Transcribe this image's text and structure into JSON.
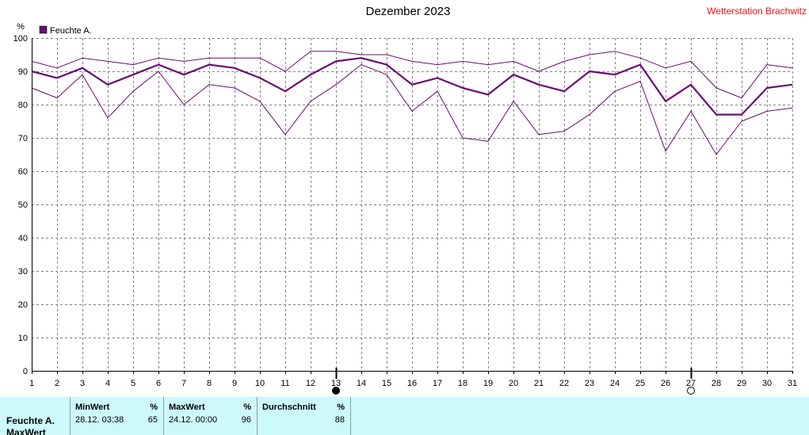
{
  "header": {
    "title": "Dezember 2023",
    "station": "Wetterstation Brachwitz"
  },
  "colors": {
    "series": "#6a0d72",
    "grid": "#808080",
    "panel_bg": "#ccfafa",
    "station_text": "#e8141a"
  },
  "chart_data": {
    "type": "line",
    "title": "Dezember 2023",
    "ylabel": "%",
    "xlabel": "",
    "ylim": [
      0,
      100
    ],
    "yticks": [
      0,
      10,
      20,
      30,
      40,
      50,
      60,
      70,
      80,
      90,
      100
    ],
    "x": [
      1,
      2,
      3,
      4,
      5,
      6,
      7,
      8,
      9,
      10,
      11,
      12,
      13,
      14,
      15,
      16,
      17,
      18,
      19,
      20,
      21,
      22,
      23,
      24,
      25,
      26,
      27,
      28,
      29,
      30,
      31
    ],
    "grid": true,
    "legend": {
      "label": "Feuchte A.",
      "position": "top-left"
    },
    "series": [
      {
        "name": "Feuchte A.",
        "role": "max",
        "values": [
          93,
          91,
          94,
          93,
          92,
          94,
          93,
          94,
          94,
          94,
          90,
          96,
          96,
          95,
          95,
          93,
          92,
          93,
          92,
          93,
          90,
          93,
          95,
          96,
          94,
          91,
          93,
          85,
          82,
          92,
          91
        ]
      },
      {
        "name": "Feuchte A.",
        "role": "mean",
        "values": [
          90,
          88,
          91,
          86,
          89,
          92,
          89,
          92,
          91,
          88,
          84,
          89,
          93,
          94,
          92,
          86,
          88,
          85,
          83,
          89,
          86,
          84,
          90,
          89,
          92,
          81,
          86,
          77,
          77,
          85,
          86
        ]
      },
      {
        "name": "Feuchte A.",
        "role": "min",
        "values": [
          85,
          82,
          89,
          76,
          84,
          90,
          80,
          86,
          85,
          81,
          71,
          81,
          86,
          92,
          89,
          78,
          84,
          70,
          69,
          81,
          71,
          72,
          77,
          84,
          87,
          66,
          78,
          65,
          75,
          78,
          79
        ]
      }
    ],
    "markers": [
      {
        "x": 13,
        "symbol": "full-moon"
      },
      {
        "x": 27,
        "symbol": "new-moon"
      }
    ]
  },
  "stats": {
    "row_label": "Feuchte A.",
    "row_label_2": "MaxWert",
    "min": {
      "header": "MinWert",
      "unit": "%",
      "date": "28.12.  03:38",
      "value": "65"
    },
    "max": {
      "header": "MaxWert",
      "unit": "%",
      "date": "24.12.  00:00",
      "value": "96"
    },
    "avg": {
      "header": "Durchschnitt",
      "unit": "%",
      "value": "88"
    }
  }
}
